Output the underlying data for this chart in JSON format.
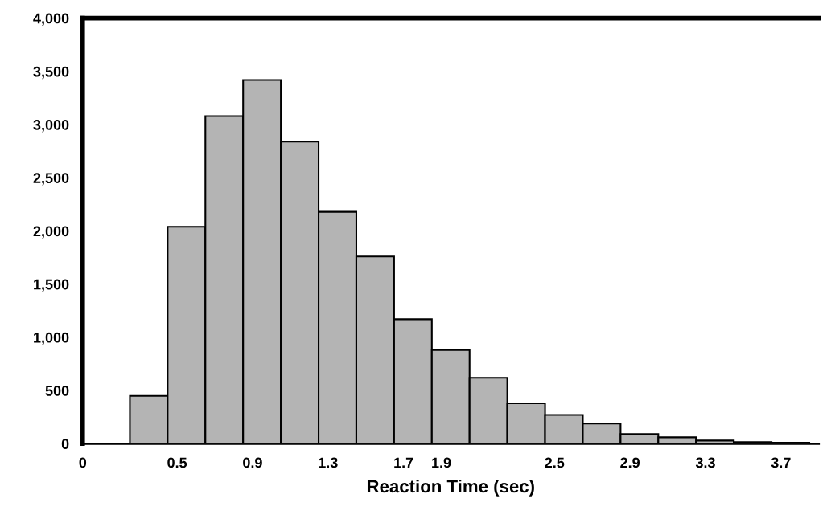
{
  "chart_data": {
    "type": "histogram",
    "xlabel": "Reaction Time (sec)",
    "bins": [
      0.25,
      0.45,
      0.65,
      0.85,
      1.05,
      1.25,
      1.45,
      1.65,
      1.85,
      2.05,
      2.25,
      2.45,
      2.65,
      2.85,
      3.05,
      3.25,
      3.45,
      3.65,
      3.85
    ],
    "values": [
      450,
      2040,
      3080,
      3420,
      2840,
      2180,
      1760,
      1170,
      880,
      620,
      380,
      270,
      190,
      90,
      60,
      30,
      15,
      10
    ],
    "color": "#b4b4b4",
    "xlim": [
      0,
      3.9
    ],
    "xticks": [
      0,
      0.5,
      0.9,
      1.3,
      1.7,
      1.9,
      2.5,
      2.9,
      3.3,
      3.7
    ],
    "ylim": [
      0,
      4000
    ],
    "yticks": [
      0,
      500,
      {
        "value": 1000,
        "label": "1,000"
      },
      {
        "value": 1500,
        "label": "1,500"
      },
      {
        "value": 2000,
        "label": "2,000"
      },
      {
        "value": 2500,
        "label": "2,500"
      },
      {
        "value": 3000,
        "label": "3,000"
      },
      {
        "value": 3500,
        "label": "3,500"
      },
      {
        "value": 4000,
        "label": "4,000"
      }
    ],
    "grid": false
  }
}
